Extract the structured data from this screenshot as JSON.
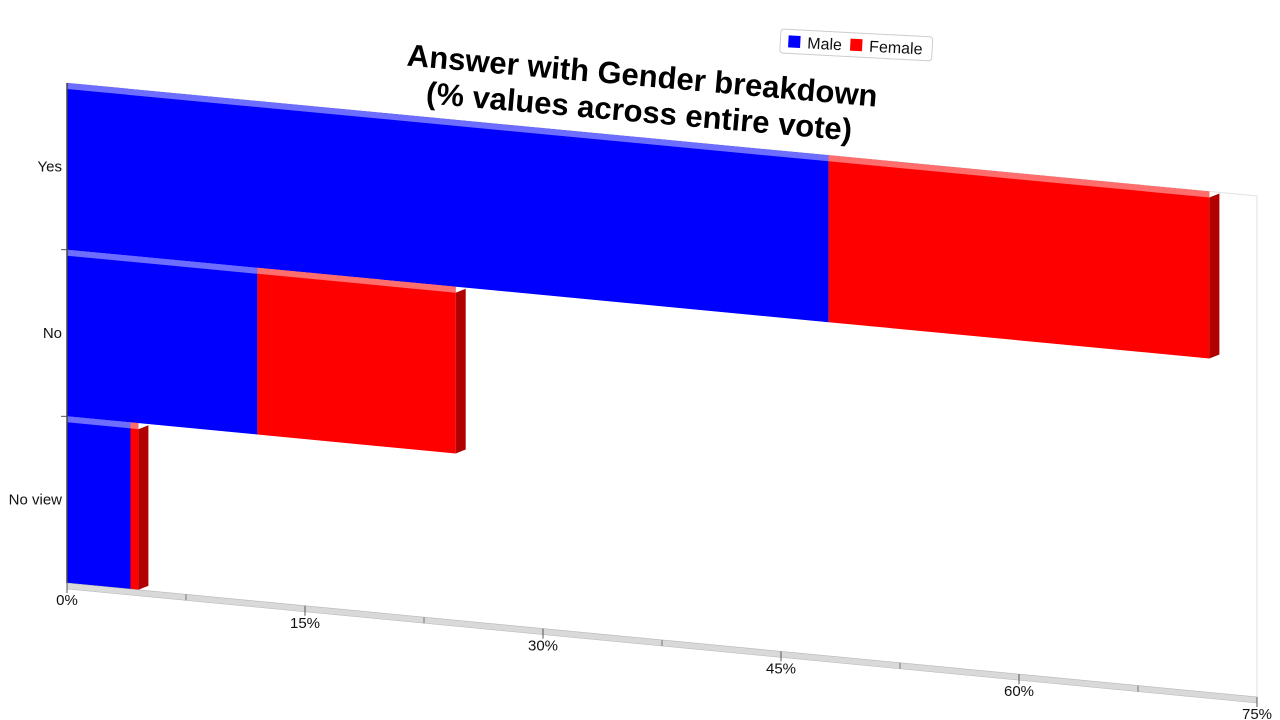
{
  "chart_data": {
    "type": "bar",
    "orientation": "horizontal",
    "stacked": true,
    "title": "Answer with Gender breakdown",
    "subtitle": "(% values across entire vote)",
    "categories": [
      "Yes",
      "No",
      "No view"
    ],
    "series": [
      {
        "name": "Male",
        "color": "#0000ff",
        "values": [
          48,
          12,
          4
        ]
      },
      {
        "name": "Female",
        "color": "#ff0000",
        "values": [
          24,
          12.5,
          0.5
        ]
      }
    ],
    "x_ticks": [
      "0%",
      "15%",
      "30%",
      "45%",
      "60%",
      "75%"
    ],
    "xlim": [
      0,
      75
    ],
    "legend_position": "top-right",
    "grid": false
  }
}
